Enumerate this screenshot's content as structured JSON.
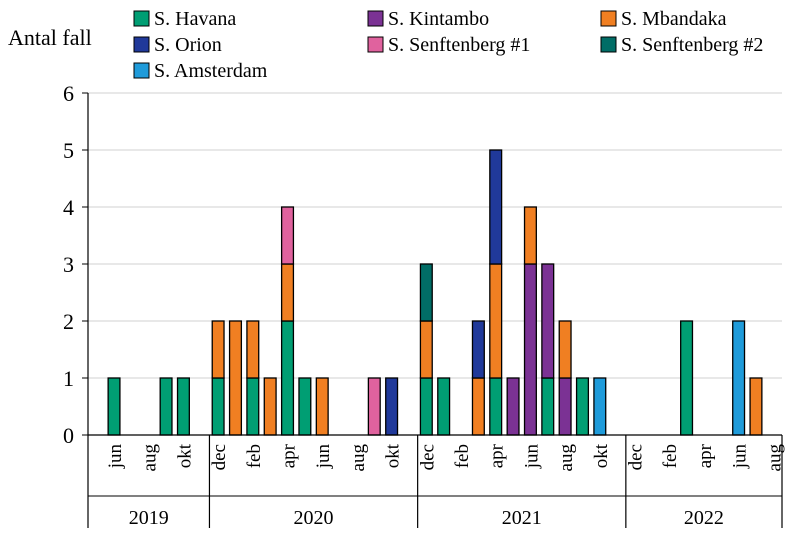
{
  "chart_data": {
    "type": "bar",
    "stacked": true,
    "title": "",
    "ylabel": "Antal fall",
    "xlabel": "",
    "ylim": [
      0,
      6
    ],
    "yticks": [
      0,
      1,
      2,
      3,
      4,
      5,
      6
    ],
    "grid": true,
    "legend_position": "top",
    "start_month": "2019-05",
    "month_count": 40,
    "tick_labels": [
      {
        "month_index": 1,
        "label": "jun"
      },
      {
        "month_index": 3,
        "label": "aug"
      },
      {
        "month_index": 5,
        "label": "okt"
      },
      {
        "month_index": 7,
        "label": "dec"
      },
      {
        "month_index": 9,
        "label": "feb"
      },
      {
        "month_index": 11,
        "label": "apr"
      },
      {
        "month_index": 13,
        "label": "jun"
      },
      {
        "month_index": 15,
        "label": "aug"
      },
      {
        "month_index": 17,
        "label": "okt"
      },
      {
        "month_index": 19,
        "label": "dec"
      },
      {
        "month_index": 21,
        "label": "feb"
      },
      {
        "month_index": 23,
        "label": "apr"
      },
      {
        "month_index": 25,
        "label": "jun"
      },
      {
        "month_index": 27,
        "label": "aug"
      },
      {
        "month_index": 29,
        "label": "okt"
      },
      {
        "month_index": 31,
        "label": "dec"
      },
      {
        "month_index": 33,
        "label": "feb"
      },
      {
        "month_index": 35,
        "label": "apr"
      },
      {
        "month_index": 37,
        "label": "jun"
      },
      {
        "month_index": 39,
        "label": "aug"
      }
    ],
    "years": [
      {
        "label": "2019",
        "start_index": 0,
        "end_index": 7
      },
      {
        "label": "2020",
        "start_index": 7,
        "end_index": 19
      },
      {
        "label": "2021",
        "start_index": 19,
        "end_index": 31
      },
      {
        "label": "2022",
        "start_index": 31,
        "end_index": 40
      }
    ],
    "series": [
      {
        "name": "S. Havana",
        "color": "#009E73",
        "values": [
          0,
          1,
          0,
          0,
          1,
          1,
          0,
          1,
          0,
          1,
          0,
          2,
          1,
          0,
          0,
          0,
          0,
          0,
          0,
          1,
          1,
          0,
          0,
          1,
          0,
          0,
          1,
          0,
          1,
          0,
          0,
          0,
          0,
          0,
          2,
          0,
          0,
          0,
          0,
          0
        ]
      },
      {
        "name": "S. Kintambo",
        "color": "#7B3294",
        "values": [
          0,
          0,
          0,
          0,
          0,
          0,
          0,
          0,
          0,
          0,
          0,
          0,
          0,
          0,
          0,
          0,
          0,
          0,
          0,
          0,
          0,
          0,
          0,
          0,
          1,
          3,
          2,
          1,
          0,
          0,
          0,
          0,
          0,
          0,
          0,
          0,
          0,
          0,
          0,
          0
        ]
      },
      {
        "name": "S. Mbandaka",
        "color": "#F07F22",
        "values": [
          0,
          0,
          0,
          0,
          0,
          0,
          0,
          1,
          2,
          1,
          1,
          1,
          0,
          1,
          0,
          0,
          0,
          0,
          0,
          1,
          0,
          0,
          1,
          2,
          0,
          1,
          0,
          1,
          0,
          0,
          0,
          0,
          0,
          0,
          0,
          0,
          0,
          0,
          1,
          0
        ]
      },
      {
        "name": "S. Orion",
        "color": "#20399A",
        "values": [
          0,
          0,
          0,
          0,
          0,
          0,
          0,
          0,
          0,
          0,
          0,
          0,
          0,
          0,
          0,
          0,
          0,
          1,
          0,
          0,
          0,
          0,
          1,
          2,
          0,
          0,
          0,
          0,
          0,
          0,
          0,
          0,
          0,
          0,
          0,
          0,
          0,
          0,
          0,
          0
        ]
      },
      {
        "name": "S. Senftenberg #1",
        "color": "#E0629E",
        "values": [
          0,
          0,
          0,
          0,
          0,
          0,
          0,
          0,
          0,
          0,
          0,
          1,
          0,
          0,
          0,
          0,
          1,
          0,
          0,
          0,
          0,
          0,
          0,
          0,
          0,
          0,
          0,
          0,
          0,
          0,
          0,
          0,
          0,
          0,
          0,
          0,
          0,
          0,
          0,
          0
        ]
      },
      {
        "name": "S. Senftenberg #2",
        "color": "#016D66",
        "values": [
          0,
          0,
          0,
          0,
          0,
          0,
          0,
          0,
          0,
          0,
          0,
          0,
          0,
          0,
          0,
          0,
          0,
          0,
          0,
          1,
          0,
          0,
          0,
          0,
          0,
          0,
          0,
          0,
          0,
          0,
          0,
          0,
          0,
          0,
          0,
          0,
          0,
          0,
          0,
          0
        ]
      },
      {
        "name": "S. Amsterdam",
        "color": "#1F9BDA",
        "values": [
          0,
          0,
          0,
          0,
          0,
          0,
          0,
          0,
          0,
          0,
          0,
          0,
          0,
          0,
          0,
          0,
          0,
          0,
          0,
          0,
          0,
          0,
          0,
          0,
          0,
          0,
          0,
          0,
          0,
          1,
          0,
          0,
          0,
          0,
          0,
          0,
          0,
          2,
          0,
          0
        ]
      }
    ]
  }
}
